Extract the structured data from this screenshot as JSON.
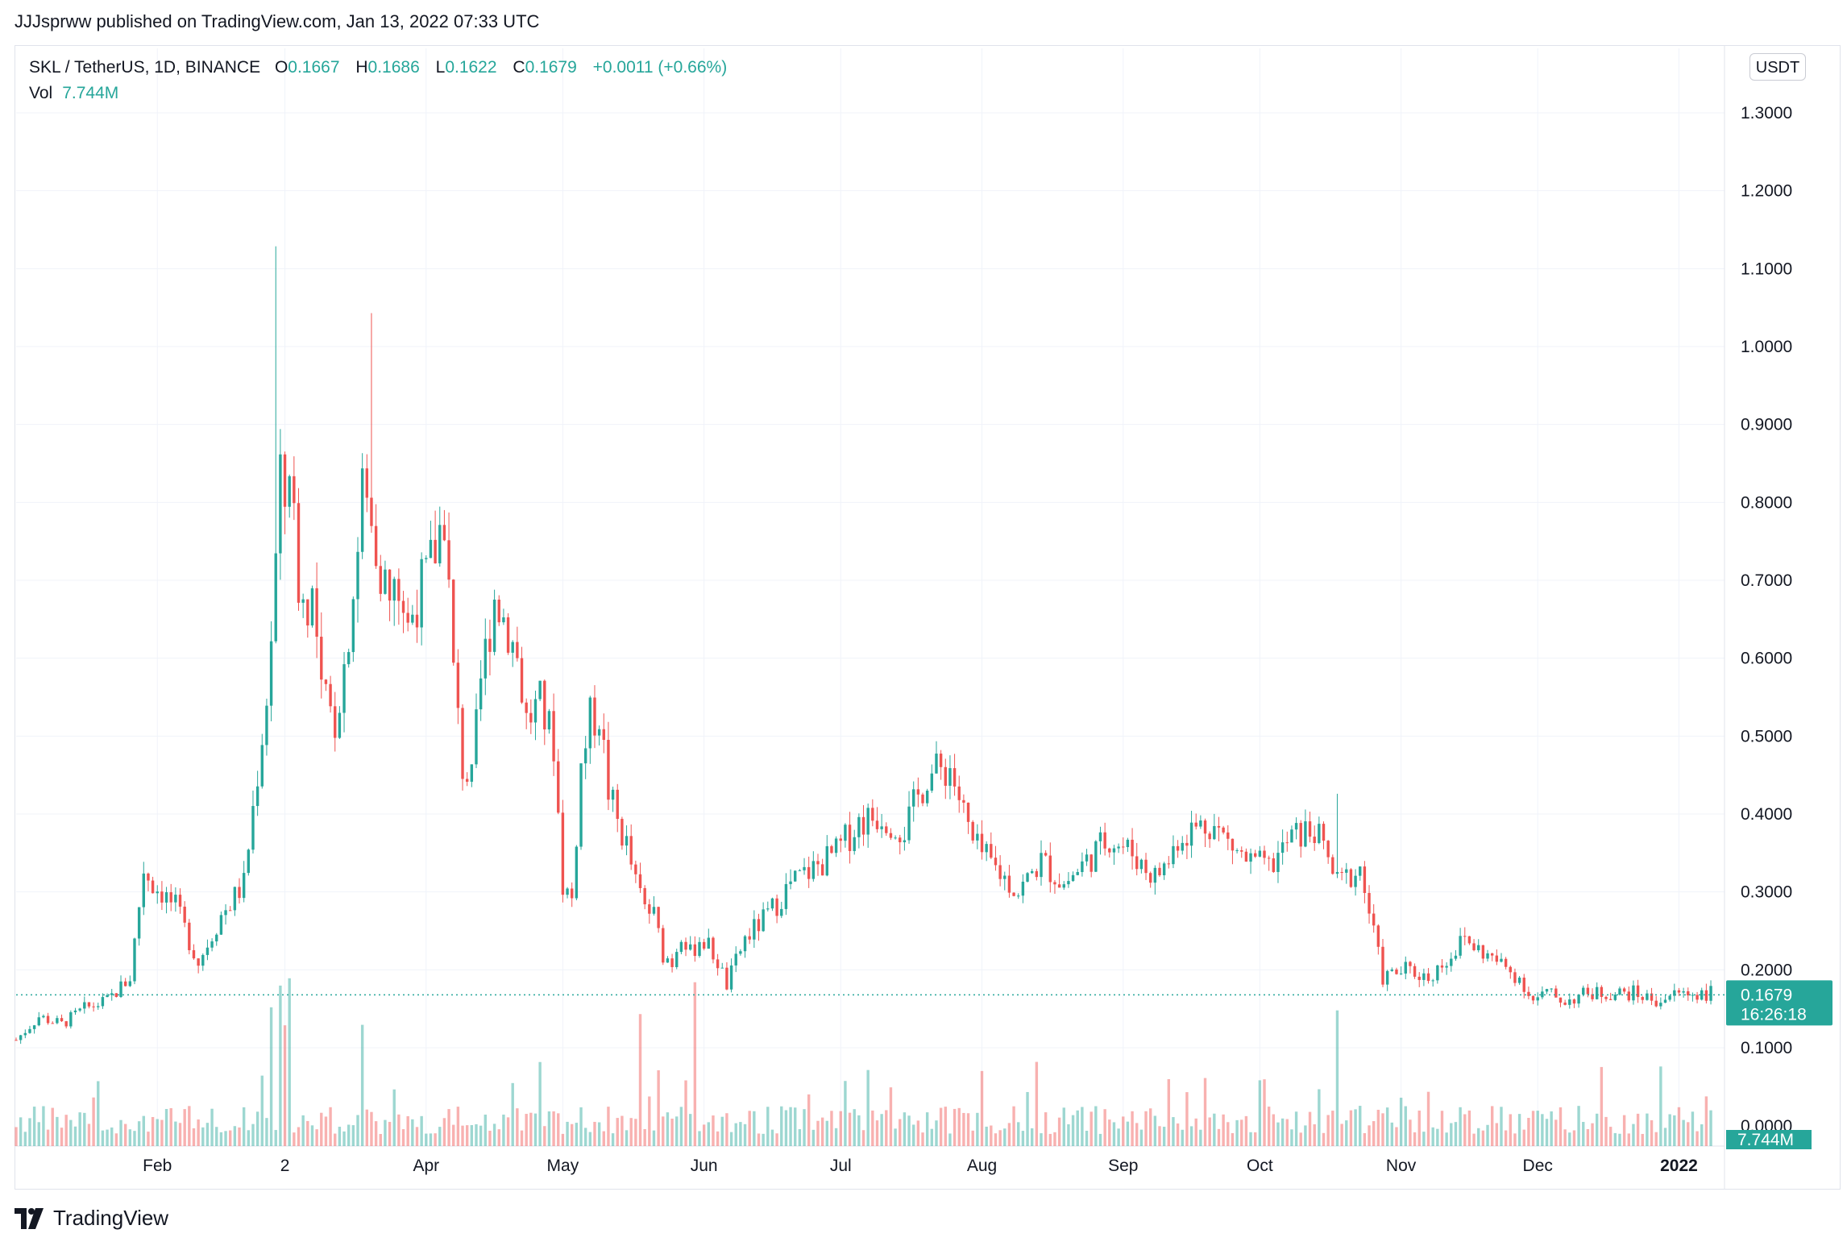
{
  "header": {
    "published_line": "JJJsprww published on TradingView.com, Jan 13, 2022 07:33 UTC"
  },
  "legend": {
    "symbol": "SKL / TetherUS, 1D, BINANCE",
    "o_label": "O",
    "o_value": "0.1667",
    "h_label": "H",
    "h_value": "0.1686",
    "l_label": "L",
    "l_value": "0.1622",
    "c_label": "C",
    "c_value": "0.1679",
    "change": "+0.0011 (+0.66%)",
    "vol_label": "Vol",
    "vol_value": "7.744M"
  },
  "currency_button": "USDT",
  "price_tag": {
    "price": "0.1679",
    "countdown": "16:26:18"
  },
  "volume_tag": "7.744M",
  "brand": "TradingView",
  "colors": {
    "up": "#26a69a",
    "down": "#ef5350",
    "grid": "#f0f3fa",
    "text": "#131722"
  },
  "chart_data": {
    "type": "candlestick",
    "title": "SKL / TetherUS, 1D, BINANCE",
    "xlabel": "",
    "ylabel": "",
    "y_ticks": [
      "0.1000",
      "0.2000",
      "0.3000",
      "0.4000",
      "0.5000",
      "0.6000",
      "0.7000",
      "0.8000",
      "0.9000",
      "1.0000",
      "1.1000",
      "1.2000",
      "1.3000"
    ],
    "ylim": [
      0.1,
      1.3
    ],
    "x_ticks": [
      "Feb",
      "2",
      "Apr",
      "May",
      "Jun",
      "Jul",
      "Aug",
      "Sep",
      "Oct",
      "Nov",
      "Dec",
      "2022"
    ],
    "x_tick_days": [
      31,
      59,
      90,
      120,
      151,
      181,
      212,
      243,
      273,
      304,
      334,
      365
    ],
    "xlim_days": [
      0,
      375
    ],
    "grid": true,
    "last_price": 0.1679,
    "approx_close_series": {
      "days": [
        0,
        5,
        10,
        15,
        20,
        25,
        28,
        30,
        32,
        35,
        40,
        45,
        50,
        55,
        56,
        58,
        59,
        60,
        61,
        62,
        63,
        65,
        67,
        70,
        72,
        75,
        76,
        78,
        80,
        82,
        84,
        86,
        88,
        90,
        92,
        94,
        96,
        98,
        100,
        102,
        105,
        108,
        110,
        112,
        115,
        118,
        120,
        122,
        124,
        126,
        128,
        130,
        132,
        134,
        136,
        138,
        140,
        142,
        144,
        146,
        148,
        150,
        152,
        154,
        156,
        160,
        165,
        170,
        175,
        180,
        185,
        190,
        195,
        200,
        205,
        210,
        215,
        220,
        225,
        230,
        235,
        240,
        245,
        248,
        250,
        253,
        255,
        258,
        262,
        265,
        270,
        275,
        280,
        285,
        288,
        290,
        295,
        300,
        305,
        310,
        315,
        318,
        320,
        325,
        330,
        333,
        336,
        340,
        345,
        350,
        355,
        360,
        365,
        368,
        370,
        372,
        375
      ],
      "close": [
        0.11,
        0.14,
        0.13,
        0.15,
        0.16,
        0.19,
        0.33,
        0.31,
        0.3,
        0.28,
        0.21,
        0.27,
        0.31,
        0.55,
        0.63,
        0.82,
        0.8,
        0.86,
        0.77,
        0.7,
        0.67,
        0.68,
        0.55,
        0.52,
        0.59,
        0.74,
        0.82,
        0.77,
        0.72,
        0.67,
        0.69,
        0.64,
        0.68,
        0.7,
        0.74,
        0.79,
        0.58,
        0.46,
        0.44,
        0.57,
        0.68,
        0.64,
        0.6,
        0.52,
        0.54,
        0.49,
        0.31,
        0.29,
        0.46,
        0.52,
        0.53,
        0.43,
        0.39,
        0.36,
        0.31,
        0.28,
        0.27,
        0.22,
        0.21,
        0.25,
        0.22,
        0.24,
        0.23,
        0.21,
        0.18,
        0.24,
        0.27,
        0.31,
        0.33,
        0.35,
        0.39,
        0.4,
        0.38,
        0.45,
        0.46,
        0.36,
        0.33,
        0.3,
        0.34,
        0.31,
        0.34,
        0.37,
        0.35,
        0.33,
        0.32,
        0.34,
        0.37,
        0.38,
        0.39,
        0.37,
        0.34,
        0.33,
        0.37,
        0.38,
        0.34,
        0.31,
        0.33,
        0.19,
        0.2,
        0.19,
        0.22,
        0.24,
        0.23,
        0.21,
        0.19,
        0.16,
        0.17,
        0.16,
        0.17,
        0.17,
        0.17,
        0.16,
        0.17,
        0.17,
        0.17,
        0.17,
        0.168
      ],
      "range_note": "one candle per day; bodies and wicks synthesized around the close path"
    },
    "volume_spikes_days": [
      56,
      58,
      59,
      60,
      76,
      137,
      149,
      290
    ],
    "volume_axis_label": "0.0000"
  }
}
